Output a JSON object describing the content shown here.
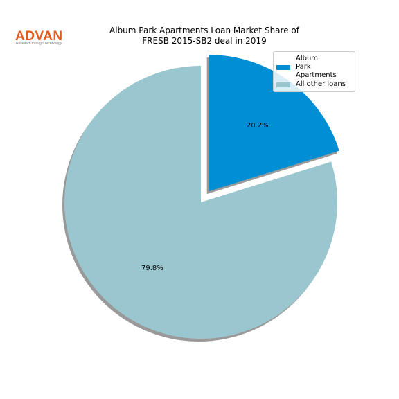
{
  "logo": {
    "text": "ADVAN",
    "tagline": "Research through Technology"
  },
  "chart_data": {
    "type": "pie",
    "title": "Album Park Apartments Loan Market Share of\nFRESB 2015-SB2 deal in 2019",
    "categories": [
      "Album\nPark Apartments",
      "All other loans"
    ],
    "values": [
      20.2,
      79.8
    ],
    "value_labels": [
      "20.2%",
      "79.8%"
    ],
    "colors": [
      "#008fd5",
      "#9ac6cf"
    ],
    "explode": [
      0.1,
      0
    ],
    "startangle": 90,
    "counterclock": false,
    "shadow": true,
    "legend": "upper right"
  }
}
